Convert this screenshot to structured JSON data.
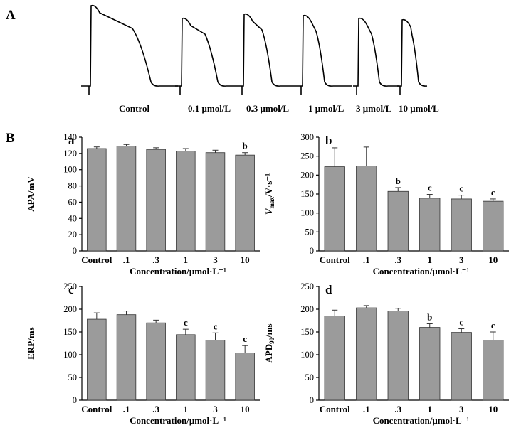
{
  "figure": {
    "panel_a_letter": "A",
    "panel_b_letter": "B",
    "traces": [
      {
        "label": "Control"
      },
      {
        "label": "0.1 μmol/L"
      },
      {
        "label": "0.3 μmol/L"
      },
      {
        "label": "1 μmol/L"
      },
      {
        "label": "3 μmol/L"
      },
      {
        "label": "10 μmol/L"
      }
    ]
  },
  "chart_data": [
    {
      "type": "bar",
      "panel": "a",
      "categories": [
        "Control",
        ".1",
        ".3",
        "1",
        "3",
        "10"
      ],
      "values": [
        126,
        129,
        125,
        123,
        121,
        118
      ],
      "errors": [
        2,
        2,
        2,
        3,
        3,
        3
      ],
      "significance": [
        "",
        "",
        "",
        "",
        "",
        "b"
      ],
      "ylabel": "APA/mV",
      "xlabel": "Concentration/μmol·L⁻¹",
      "ylim": [
        0,
        140
      ],
      "yticks": [
        0,
        20,
        40,
        60,
        80,
        100,
        120,
        140
      ],
      "ylabel_parts": {
        "main": "APA/mV",
        "sub": ""
      }
    },
    {
      "type": "bar",
      "panel": "b",
      "categories": [
        "Control",
        ".1",
        ".3",
        "1",
        "3",
        "10"
      ],
      "values": [
        222,
        224,
        157,
        139,
        137,
        131
      ],
      "errors": [
        50,
        50,
        10,
        10,
        10,
        6
      ],
      "significance": [
        "",
        "",
        "b",
        "c",
        "c",
        "c"
      ],
      "ylabel": "Vmax/V·s⁻¹",
      "xlabel": "Concentration/μmol·L⁻¹",
      "ylim": [
        0,
        300
      ],
      "yticks": [
        0,
        50,
        100,
        150,
        200,
        250,
        300
      ],
      "ylabel_parts": {
        "main": "V",
        "sub": "max",
        "rest": "/V·s⁻¹"
      }
    },
    {
      "type": "bar",
      "panel": "c",
      "categories": [
        "Control",
        ".1",
        ".3",
        "1",
        "3",
        "10"
      ],
      "values": [
        178,
        188,
        170,
        144,
        132,
        104
      ],
      "errors": [
        14,
        8,
        6,
        12,
        16,
        16
      ],
      "significance": [
        "",
        "",
        "",
        "c",
        "c",
        "c"
      ],
      "ylabel": "ERP/ms",
      "xlabel": "Concentration/μmol·L⁻¹",
      "ylim": [
        0,
        250
      ],
      "yticks": [
        0,
        50,
        100,
        150,
        200,
        250
      ],
      "ylabel_parts": {
        "main": "ERP/ms",
        "sub": ""
      }
    },
    {
      "type": "bar",
      "panel": "d",
      "categories": [
        "Control",
        ".1",
        ".3",
        "1",
        "3",
        "10"
      ],
      "values": [
        185,
        203,
        196,
        160,
        149,
        132
      ],
      "errors": [
        13,
        5,
        6,
        8,
        8,
        18
      ],
      "significance": [
        "",
        "",
        "",
        "b",
        "c",
        "c"
      ],
      "ylabel": "APD90/ms",
      "xlabel": "Concentration/μmol·L⁻¹",
      "ylim": [
        0,
        250
      ],
      "yticks": [
        0,
        50,
        100,
        150,
        200,
        250
      ],
      "ylabel_parts": {
        "main": "APD",
        "sub": "90",
        "rest": "/ms"
      }
    }
  ]
}
